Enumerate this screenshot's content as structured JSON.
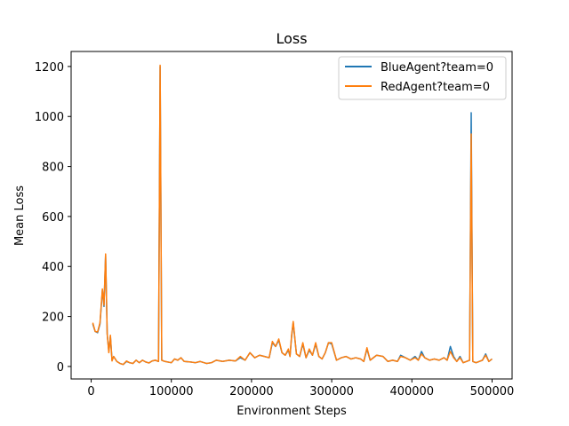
{
  "chart_data": {
    "type": "line",
    "title": "Loss",
    "xlabel": "Environment Steps",
    "ylabel": "Mean Loss",
    "xlim": [
      -25000,
      525000
    ],
    "ylim": [
      -50,
      1260
    ],
    "xticks": [
      0,
      100000,
      200000,
      300000,
      400000,
      500000
    ],
    "xtick_labels": [
      "0",
      "100000",
      "200000",
      "300000",
      "400000",
      "500000"
    ],
    "yticks": [
      0,
      200,
      400,
      600,
      800,
      1000,
      1200
    ],
    "ytick_labels": [
      "0",
      "200",
      "400",
      "600",
      "800",
      "1000",
      "1200"
    ],
    "grid": false,
    "legend_position": "upper right",
    "series": [
      {
        "name": "BlueAgent?team=0",
        "color": "#1f77b4",
        "x": [
          2000,
          5000,
          8000,
          11000,
          14000,
          16000,
          18000,
          20000,
          22000,
          24000,
          26000,
          28000,
          32000,
          36000,
          40000,
          44000,
          48000,
          52000,
          56000,
          60000,
          64000,
          68000,
          72000,
          76000,
          80000,
          84000,
          86000,
          88000,
          92000,
          100000,
          104000,
          108000,
          112000,
          116000,
          124000,
          130000,
          136000,
          144000,
          150000,
          156000,
          164000,
          172000,
          180000,
          186000,
          192000,
          198000,
          204000,
          210000,
          216000,
          222000,
          226000,
          230000,
          234000,
          238000,
          242000,
          246000,
          248000,
          250000,
          252000,
          256000,
          260000,
          264000,
          268000,
          272000,
          276000,
          280000,
          284000,
          288000,
          292000,
          296000,
          300000,
          306000,
          312000,
          318000,
          324000,
          330000,
          336000,
          340000,
          344000,
          348000,
          356000,
          364000,
          370000,
          376000,
          382000,
          386000,
          392000,
          398000,
          404000,
          408000,
          412000,
          416000,
          422000,
          428000,
          434000,
          440000,
          444000,
          448000,
          452000,
          456000,
          460000,
          464000,
          468000,
          472000,
          474000,
          476000,
          480000,
          484000,
          488000,
          492000,
          496000,
          500000
        ],
        "y": [
          170,
          140,
          135,
          170,
          305,
          240,
          445,
          130,
          60,
          120,
          25,
          40,
          20,
          12,
          8,
          20,
          15,
          12,
          25,
          15,
          25,
          18,
          14,
          22,
          25,
          20,
          1200,
          25,
          20,
          15,
          30,
          25,
          35,
          20,
          18,
          15,
          20,
          12,
          15,
          25,
          20,
          25,
          22,
          35,
          25,
          55,
          35,
          45,
          40,
          35,
          95,
          80,
          105,
          55,
          45,
          65,
          40,
          120,
          175,
          50,
          40,
          90,
          35,
          65,
          45,
          90,
          40,
          30,
          55,
          95,
          90,
          25,
          35,
          40,
          30,
          35,
          30,
          20,
          70,
          25,
          45,
          40,
          20,
          25,
          20,
          45,
          35,
          25,
          40,
          25,
          60,
          35,
          25,
          30,
          25,
          35,
          25,
          80,
          40,
          20,
          40,
          15,
          20,
          25,
          1015,
          20,
          15,
          20,
          25,
          50,
          20,
          30
        ]
      },
      {
        "name": "RedAgent?team=0",
        "color": "#ff7f0e",
        "x": [
          2000,
          5000,
          8000,
          11000,
          14000,
          16000,
          18000,
          20000,
          22000,
          24000,
          26000,
          28000,
          32000,
          36000,
          40000,
          44000,
          48000,
          52000,
          56000,
          60000,
          64000,
          68000,
          72000,
          76000,
          80000,
          84000,
          86000,
          88000,
          92000,
          100000,
          104000,
          108000,
          112000,
          116000,
          124000,
          130000,
          136000,
          144000,
          150000,
          156000,
          164000,
          172000,
          180000,
          186000,
          192000,
          198000,
          204000,
          210000,
          216000,
          222000,
          226000,
          230000,
          234000,
          238000,
          242000,
          246000,
          248000,
          250000,
          252000,
          256000,
          260000,
          264000,
          268000,
          272000,
          276000,
          280000,
          284000,
          288000,
          292000,
          296000,
          300000,
          306000,
          312000,
          318000,
          324000,
          330000,
          336000,
          340000,
          344000,
          348000,
          356000,
          364000,
          370000,
          376000,
          382000,
          386000,
          392000,
          398000,
          404000,
          408000,
          412000,
          416000,
          422000,
          428000,
          434000,
          440000,
          444000,
          448000,
          452000,
          456000,
          460000,
          464000,
          468000,
          472000,
          474000,
          476000,
          480000,
          484000,
          488000,
          492000,
          496000,
          500000
        ],
        "y": [
          175,
          140,
          138,
          175,
          310,
          245,
          450,
          130,
          55,
          125,
          22,
          40,
          20,
          12,
          8,
          22,
          15,
          12,
          25,
          15,
          25,
          18,
          14,
          22,
          25,
          20,
          1205,
          25,
          20,
          15,
          30,
          25,
          35,
          20,
          18,
          15,
          20,
          12,
          15,
          25,
          20,
          25,
          22,
          40,
          25,
          55,
          35,
          45,
          40,
          35,
          100,
          80,
          110,
          55,
          45,
          70,
          40,
          125,
          180,
          50,
          40,
          95,
          35,
          70,
          45,
          95,
          40,
          30,
          55,
          95,
          95,
          25,
          35,
          40,
          30,
          35,
          30,
          20,
          75,
          25,
          45,
          40,
          20,
          25,
          20,
          40,
          35,
          25,
          35,
          25,
          50,
          35,
          25,
          30,
          25,
          35,
          25,
          60,
          35,
          20,
          35,
          15,
          20,
          25,
          930,
          20,
          15,
          20,
          25,
          45,
          20,
          30
        ]
      }
    ]
  }
}
